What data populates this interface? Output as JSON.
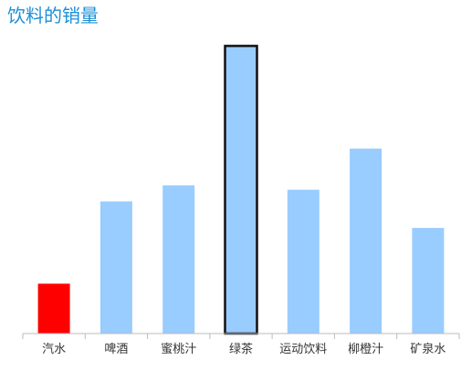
{
  "chart_data": {
    "type": "bar",
    "title": "饮料的销量",
    "categories": [
      "汽水",
      "啤酒",
      "蜜桃汁",
      "绿茶",
      "运动饮料",
      "柳橙汁",
      "矿泉水"
    ],
    "values": [
      17,
      45,
      50.5,
      98,
      49,
      63,
      36
    ],
    "ylim": [
      0,
      100
    ],
    "grid": false,
    "legend": "none",
    "highlight": [
      {
        "category": "汽水",
        "style": "red-fill"
      },
      {
        "category": "绿茶",
        "style": "black-outline"
      }
    ]
  },
  "colors": {
    "title": "#1a8fd6",
    "bar": "#99ccff",
    "highlight_bar": "#ff0000",
    "outline": "#111111",
    "axis": "#bbbbbb",
    "tick_label": "#333333"
  }
}
